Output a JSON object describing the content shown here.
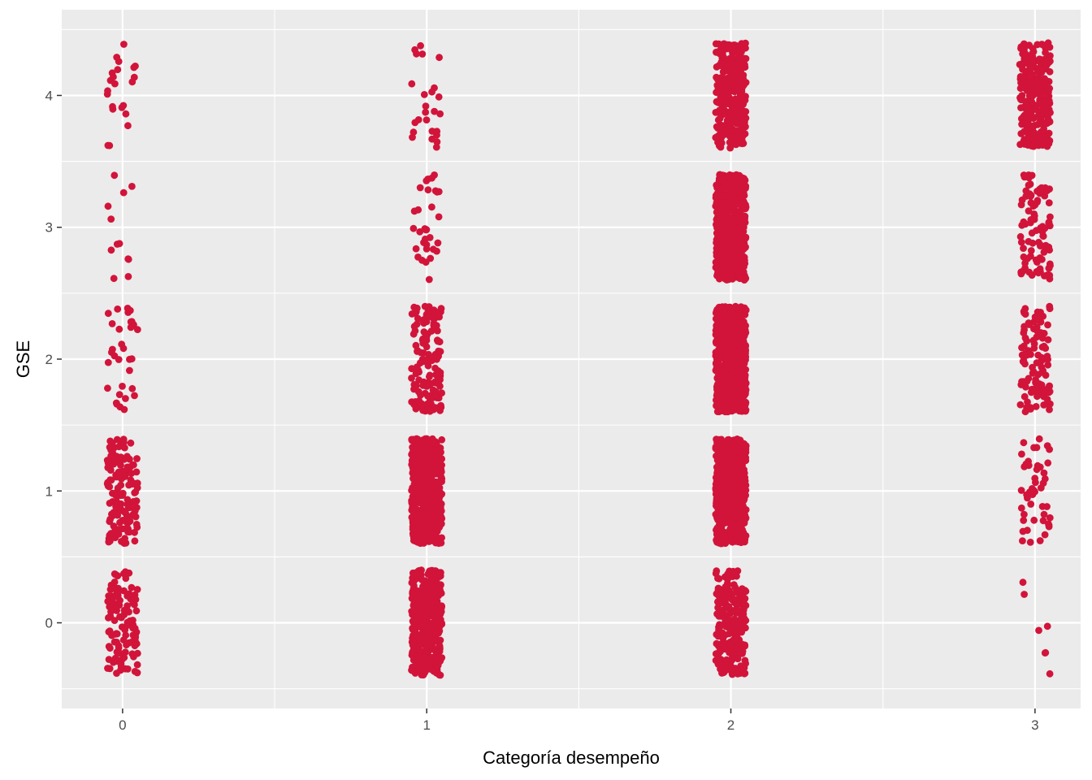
{
  "chart_data": {
    "type": "scatter",
    "subtype": "jitter",
    "title": "",
    "xlabel": "Categoría desempeño",
    "ylabel": "GSE",
    "x_ticks": [
      0,
      1,
      2,
      3
    ],
    "y_ticks": [
      0,
      1,
      2,
      3,
      4
    ],
    "xlim": [
      -0.2,
      3.15
    ],
    "ylim": [
      -0.65,
      4.65
    ],
    "jitter": {
      "width": 0.05,
      "height": 0.4
    },
    "point_color": "#D2143A",
    "panel_background": "#EBEBEB",
    "grid": true,
    "legend": "none",
    "groups": [
      {
        "x": 0,
        "y": 0,
        "n": 120
      },
      {
        "x": 0,
        "y": 1,
        "n": 140
      },
      {
        "x": 0,
        "y": 2,
        "n": 32
      },
      {
        "x": 0,
        "y": 3,
        "n": 12
      },
      {
        "x": 0,
        "y": 4,
        "n": 22
      },
      {
        "x": 1,
        "y": 0,
        "n": 420
      },
      {
        "x": 1,
        "y": 1,
        "n": 520
      },
      {
        "x": 1,
        "y": 2,
        "n": 150
      },
      {
        "x": 1,
        "y": 3,
        "n": 32
      },
      {
        "x": 1,
        "y": 4,
        "n": 25
      },
      {
        "x": 2,
        "y": 0,
        "n": 230
      },
      {
        "x": 2,
        "y": 1,
        "n": 560
      },
      {
        "x": 2,
        "y": 2,
        "n": 700
      },
      {
        "x": 2,
        "y": 3,
        "n": 520
      },
      {
        "x": 2,
        "y": 4,
        "n": 320
      },
      {
        "x": 3,
        "y": 0,
        "n": 7
      },
      {
        "x": 3,
        "y": 1,
        "n": 48
      },
      {
        "x": 3,
        "y": 2,
        "n": 110
      },
      {
        "x": 3,
        "y": 3,
        "n": 95
      },
      {
        "x": 3,
        "y": 4,
        "n": 240
      }
    ]
  }
}
